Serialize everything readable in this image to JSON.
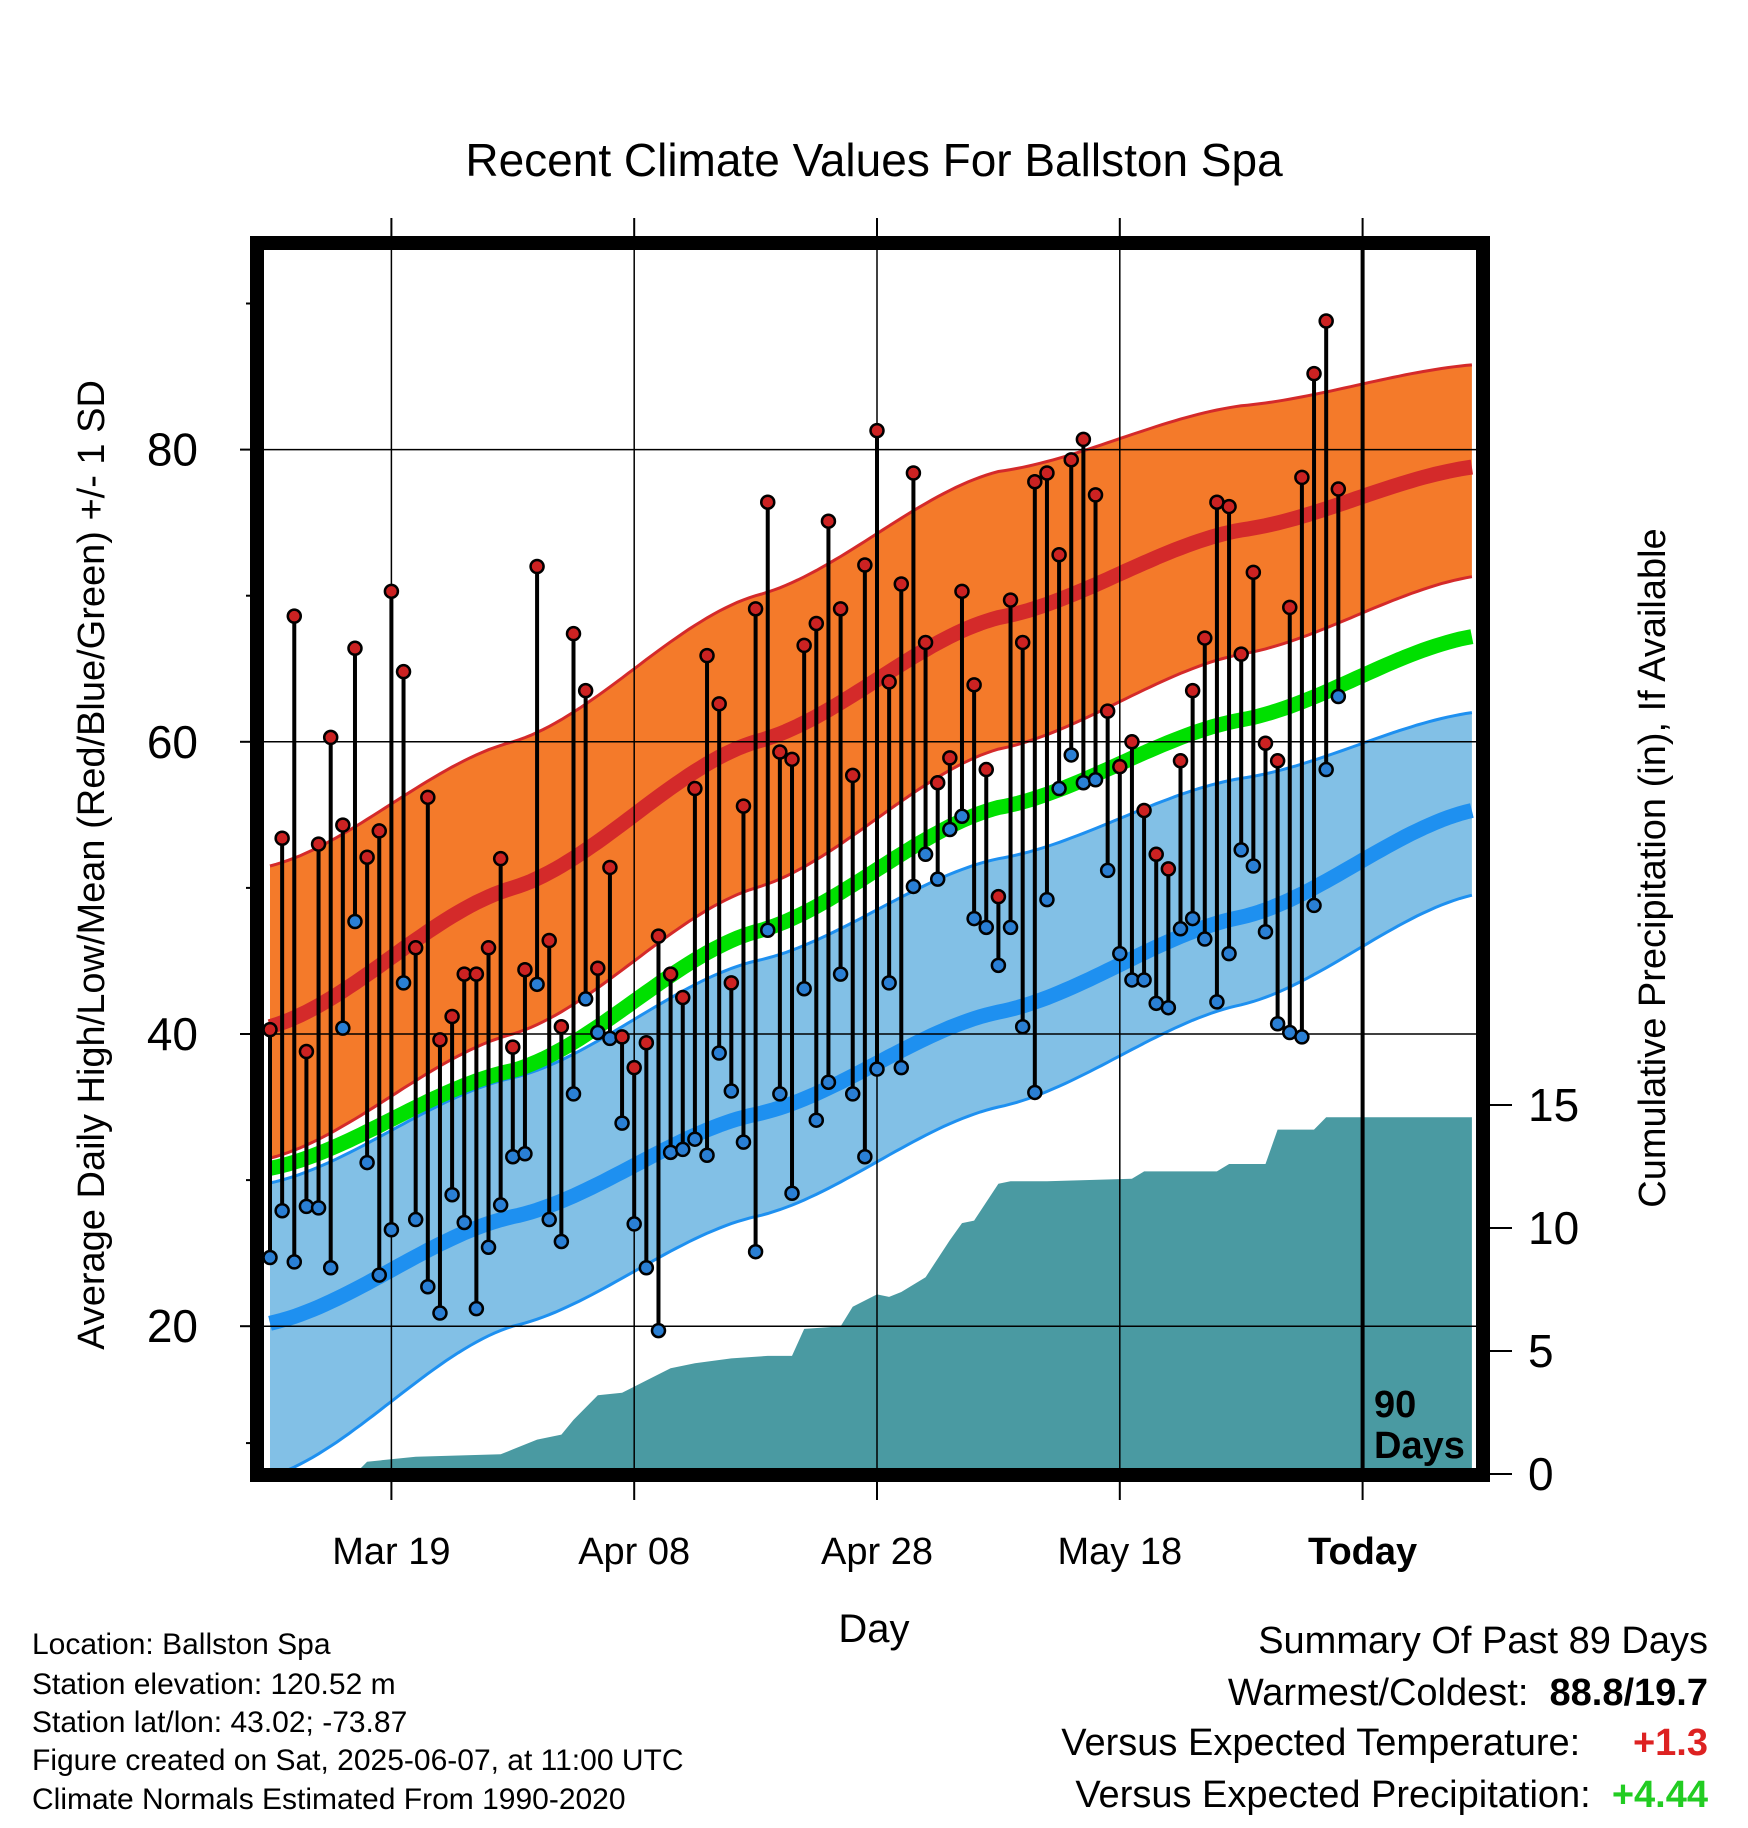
{
  "title": "Recent Climate Values For Ballston Spa",
  "left_axis_label": "Average Daily High/Low/Mean (Red/Blue/Green) +/- 1 SD",
  "right_axis_label": "Cumulative Precipitation (in), If Available",
  "x_axis_label": "Day",
  "today_marker": {
    "line1": "90",
    "line2": "Days"
  },
  "info": {
    "location": "Location: Ballston Spa",
    "elevation": "Station elevation: 120.52 m",
    "latlon": "Station lat/lon: 43.02; -73.87",
    "created": "Figure created on Sat, 2025-06-07, at 11:00 UTC",
    "normals": "Climate Normals Estimated From 1990-2020"
  },
  "summary": {
    "heading": "Summary Of Past 89 Days",
    "warm_cold_label": "Warmest/Coldest:",
    "warm_cold_value": "88.8/19.7",
    "temp_label": "Versus Expected Temperature:",
    "temp_value": "+1.3",
    "precip_label": "Versus Expected Precipitation:",
    "precip_value": "+4.44"
  },
  "colors": {
    "high_band": "#f47a2a",
    "high_mean": "#d42a2a",
    "low_band": "#82c0e6",
    "low_mean": "#1e90f0",
    "mean_line": "#00e000",
    "precip": "#4a9aa2",
    "high_dot": "#cc2222",
    "low_dot": "#2a7fd4",
    "temp_value": "#dd2222",
    "precip_value": "#22cc22"
  },
  "chart_data": {
    "type": "line",
    "x_unit": "day (0 = 2025-03-09, 90 = Today)",
    "x_range": [
      0,
      90
    ],
    "x_ticks": [
      {
        "x": 10,
        "label": "Mar 19"
      },
      {
        "x": 30,
        "label": "Apr 08"
      },
      {
        "x": 50,
        "label": "Apr 28"
      },
      {
        "x": 70,
        "label": "May 18"
      },
      {
        "x": 90,
        "label": "Today"
      }
    ],
    "y_left": {
      "range": [
        10,
        94
      ],
      "ticks": [
        20,
        40,
        60,
        80
      ],
      "minor_ticks": [
        30,
        50,
        70,
        90
      ]
    },
    "y_right": {
      "range": [
        0,
        15
      ],
      "ticks": [
        0,
        5,
        10,
        15
      ]
    },
    "grid": true,
    "normals": {
      "x": [
        0,
        20,
        40,
        60,
        80,
        99
      ],
      "high_mean": [
        40.5,
        50,
        60,
        68.5,
        74.5,
        78.8
      ],
      "high_upper": [
        51.5,
        60,
        70,
        78.5,
        83,
        85.8
      ],
      "high_lower": [
        31.5,
        40,
        50,
        59.5,
        66,
        71.3
      ],
      "low_mean": [
        20.2,
        27.5,
        34.5,
        41.5,
        48,
        55.3
      ],
      "low_upper": [
        29.8,
        37,
        45,
        52,
        57.5,
        62
      ],
      "low_lower": [
        9.7,
        20,
        27.5,
        35,
        42,
        49.5
      ],
      "mean": [
        30.8,
        37.5,
        47,
        55.5,
        61.5,
        67.2
      ]
    },
    "precip_cumulative": {
      "x": [
        0,
        7,
        8,
        12,
        19,
        20,
        22,
        24,
        25,
        26,
        27,
        29,
        31,
        33,
        34,
        35,
        38,
        41,
        43,
        44,
        47,
        48,
        50,
        51,
        52,
        54,
        56,
        57,
        58,
        60,
        61,
        62,
        64,
        71,
        72,
        74,
        78,
        79,
        82,
        83,
        86,
        87,
        99
      ],
      "values": [
        0,
        0,
        0.5,
        0.7,
        0.8,
        1.0,
        1.4,
        1.6,
        2.2,
        2.7,
        3.2,
        3.3,
        3.8,
        4.3,
        4.4,
        4.5,
        4.7,
        4.8,
        4.8,
        5.9,
        6.0,
        6.8,
        7.3,
        7.2,
        7.4,
        8.0,
        9.5,
        10.2,
        10.3,
        11.8,
        11.9,
        11.9,
        11.9,
        12.0,
        12.3,
        12.3,
        12.3,
        12.6,
        12.6,
        14.0,
        14.0,
        14.5,
        14.5
      ]
    },
    "series": [
      {
        "name": "High",
        "x": [
          0,
          1,
          2,
          3,
          4,
          5,
          6,
          7,
          8,
          9,
          10,
          11,
          12,
          13,
          14,
          15,
          16,
          17,
          18,
          19,
          20,
          21,
          22,
          23,
          24,
          25,
          26,
          27,
          28,
          29,
          30,
          31,
          32,
          33,
          34,
          35,
          36,
          37,
          38,
          39,
          40,
          41,
          42,
          43,
          44,
          45,
          46,
          47,
          48,
          49,
          50,
          51,
          52,
          53,
          54,
          55,
          56,
          57,
          58,
          59,
          60,
          61,
          62,
          63,
          64,
          65,
          66,
          67,
          68,
          69,
          70,
          71,
          72,
          73,
          74,
          75,
          76,
          77,
          78,
          79,
          80,
          81,
          82,
          83,
          84,
          85,
          86,
          87,
          88
        ],
        "values": [
          40.3,
          53.4,
          68.6,
          38.8,
          53,
          60.3,
          54.3,
          66.4,
          52.1,
          53.9,
          70.3,
          64.8,
          45.9,
          56.2,
          39.6,
          41.2,
          44.1,
          44.1,
          45.9,
          52,
          39.1,
          44.4,
          72,
          46.4,
          40.5,
          67.4,
          63.5,
          44.5,
          51.4,
          39.8,
          37.7,
          39.4,
          46.7,
          44.1,
          42.5,
          56.8,
          65.9,
          62.6,
          43.5,
          55.6,
          69.1,
          76.4,
          59.3,
          58.8,
          66.6,
          68.1,
          75.1,
          69.1,
          57.7,
          72.1,
          81.3,
          64.1,
          70.8,
          78.4,
          66.8,
          57.2,
          58.9,
          70.3,
          63.9,
          58.1,
          49.4,
          69.7,
          66.8,
          77.8,
          78.4,
          72.8,
          79.3,
          80.7,
          76.9,
          62.1,
          58.3,
          60,
          55.3,
          52.3,
          51.3,
          58.7,
          63.5,
          67.1,
          76.4,
          76.1,
          66,
          71.6,
          59.9,
          58.7,
          69.2,
          78.1,
          85.2,
          88.8,
          77.3
        ]
      },
      {
        "name": "Low",
        "x": [
          0,
          1,
          2,
          3,
          4,
          5,
          6,
          7,
          8,
          9,
          10,
          11,
          12,
          13,
          14,
          15,
          16,
          17,
          18,
          19,
          20,
          21,
          22,
          23,
          24,
          25,
          26,
          27,
          28,
          29,
          30,
          31,
          32,
          33,
          34,
          35,
          36,
          37,
          38,
          39,
          40,
          41,
          42,
          43,
          44,
          45,
          46,
          47,
          48,
          49,
          50,
          51,
          52,
          53,
          54,
          55,
          56,
          57,
          58,
          59,
          60,
          61,
          62,
          63,
          64,
          65,
          66,
          67,
          68,
          69,
          70,
          71,
          72,
          73,
          74,
          75,
          76,
          77,
          78,
          79,
          80,
          81,
          82,
          83,
          84,
          85,
          86,
          87,
          88
        ],
        "values": [
          24.7,
          27.9,
          24.4,
          28.2,
          28.1,
          24,
          40.4,
          47.7,
          31.2,
          23.5,
          26.6,
          43.5,
          27.3,
          22.7,
          20.9,
          29,
          27.1,
          21.2,
          25.4,
          28.3,
          31.6,
          31.8,
          43.4,
          27.3,
          25.8,
          35.9,
          42.4,
          40.1,
          39.7,
          33.9,
          27,
          24,
          19.7,
          31.9,
          32.1,
          32.8,
          31.7,
          38.7,
          36.1,
          32.6,
          25.1,
          47.1,
          35.9,
          29.1,
          43.1,
          34.1,
          36.7,
          44.1,
          35.9,
          31.6,
          37.6,
          43.5,
          37.7,
          50.1,
          52.3,
          50.6,
          54,
          54.9,
          47.9,
          47.3,
          44.7,
          47.3,
          40.5,
          36,
          49.2,
          56.8,
          59.1,
          57.2,
          57.4,
          51.2,
          45.5,
          43.7,
          43.7,
          42.1,
          41.8,
          47.2,
          47.9,
          46.5,
          42.2,
          45.5,
          52.6,
          51.5,
          47,
          40.7,
          40.1,
          39.8,
          48.8,
          58.1,
          63.1
        ]
      }
    ]
  }
}
